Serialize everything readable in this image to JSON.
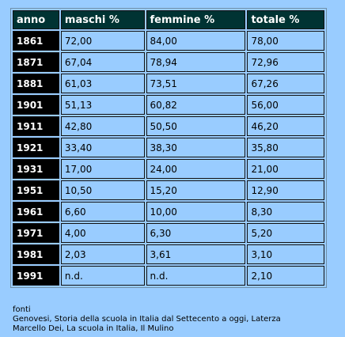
{
  "table": {
    "headers": [
      "anno",
      "maschi %",
      "femmine %",
      "totale %"
    ],
    "rows": [
      [
        "1861",
        "72,00",
        "84,00",
        "78,00"
      ],
      [
        "1871",
        "67,04",
        "78,94",
        "72,96"
      ],
      [
        "1881",
        "61,03",
        "73,51",
        "67,26"
      ],
      [
        "1901",
        "51,13",
        "60,82",
        "56,00"
      ],
      [
        "1911",
        "42,80",
        "50,50",
        "46,20"
      ],
      [
        "1921",
        "33,40",
        "38,30",
        "35,80"
      ],
      [
        "1931",
        "17,00",
        "24,00",
        "21,00"
      ],
      [
        "1951",
        "10,50",
        "15,20",
        "12,90"
      ],
      [
        "1961",
        "6,60",
        "10,00",
        "8,30"
      ],
      [
        "1971",
        "4,00",
        "6,30",
        "5,20"
      ],
      [
        "1981",
        "2,03",
        "3,61",
        "3,10"
      ],
      [
        "1991",
        "n.d.",
        "n.d.",
        "2,10"
      ]
    ]
  },
  "sources": {
    "label": "fonti",
    "lines": [
      "Genovesi, Storia della scuola in Italia dal Settecento a oggi, Laterza",
      "Marcello Dei, La scuola in Italia, Il Mulino"
    ]
  },
  "colors": {
    "page_background": "#99ccff",
    "header_background": "#003333",
    "year_background": "#000000"
  }
}
